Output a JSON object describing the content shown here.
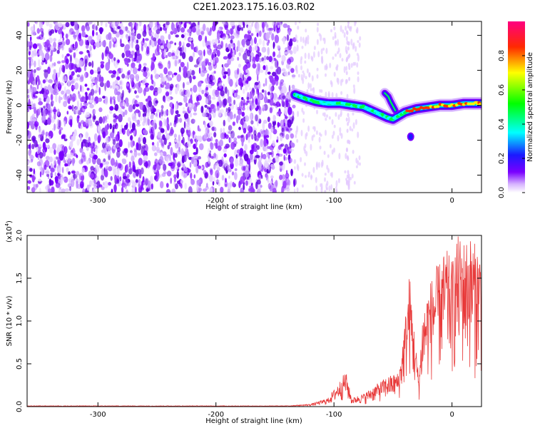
{
  "title": "C2E1.2023.175.16.03.R02",
  "spectrogram": {
    "type": "heatmap",
    "xlabel": "Height of straight line (km)",
    "ylabel": "Frequency (Hz)",
    "xlim": [
      -360,
      25
    ],
    "ylim": [
      -50,
      48
    ],
    "xticks": [
      -300,
      -200,
      -100,
      0
    ],
    "yticks": [
      -40,
      -20,
      0,
      20,
      40
    ],
    "colorbar": {
      "label": "Normalized spectral amplitude",
      "range": [
        0.0,
        1.0
      ],
      "ticks": [
        "0.0",
        "0.2",
        "0.4",
        "0.6",
        "0.8"
      ],
      "tick_values": [
        0.0,
        0.2,
        0.4,
        0.6,
        0.8
      ]
    },
    "noise_region": {
      "x_from": -360,
      "x_to": -133,
      "color": "#7a00ff"
    },
    "signal_track": [
      {
        "x": -133,
        "y": 6
      },
      {
        "x": -125,
        "y": 4
      },
      {
        "x": -115,
        "y": 2
      },
      {
        "x": -105,
        "y": 1
      },
      {
        "x": -95,
        "y": 1
      },
      {
        "x": -85,
        "y": 0
      },
      {
        "x": -75,
        "y": -1
      },
      {
        "x": -65,
        "y": -4
      },
      {
        "x": -55,
        "y": -7
      },
      {
        "x": -50,
        "y": -8
      },
      {
        "x": -45,
        "y": -6
      },
      {
        "x": -40,
        "y": -4
      },
      {
        "x": -30,
        "y": -2
      },
      {
        "x": -20,
        "y": -1
      },
      {
        "x": -10,
        "y": 0
      },
      {
        "x": 0,
        "y": 0
      },
      {
        "x": 10,
        "y": 1
      },
      {
        "x": 20,
        "y": 1
      },
      {
        "x": 25,
        "y": 1
      }
    ],
    "side_branch": [
      {
        "x": -57,
        "y": 7
      },
      {
        "x": -54,
        "y": 5
      },
      {
        "x": -52,
        "y": 2
      },
      {
        "x": -48,
        "y": -3
      }
    ],
    "isolated_blob": {
      "x": -35,
      "y": -18
    }
  },
  "snr": {
    "type": "line",
    "xlabel": "Height of straight line (km)",
    "ylabel": "SNR (10 * v/v)",
    "scale_label": "(x10",
    "scale_exp": "4",
    "scale_close": ")",
    "xlim": [
      -360,
      25
    ],
    "ylim": [
      0,
      2.0
    ],
    "xticks": [
      -300,
      -200,
      -100,
      0
    ],
    "yticks": [
      "0.0",
      "0.5",
      "1.0",
      "1.5",
      "2.0"
    ],
    "ytick_values": [
      0.0,
      0.5,
      1.0,
      1.5,
      2.0
    ],
    "color": "#e83a3a",
    "envelope": [
      {
        "x": -360,
        "y": 0.01
      },
      {
        "x": -140,
        "y": 0.01
      },
      {
        "x": -120,
        "y": 0.03
      },
      {
        "x": -105,
        "y": 0.1
      },
      {
        "x": -95,
        "y": 0.3
      },
      {
        "x": -90,
        "y": 0.42
      },
      {
        "x": -85,
        "y": 0.1
      },
      {
        "x": -75,
        "y": 0.15
      },
      {
        "x": -65,
        "y": 0.25
      },
      {
        "x": -55,
        "y": 0.35
      },
      {
        "x": -45,
        "y": 0.4
      },
      {
        "x": -40,
        "y": 1.0
      },
      {
        "x": -36,
        "y": 1.58
      },
      {
        "x": -32,
        "y": 0.9
      },
      {
        "x": -28,
        "y": 0.35
      },
      {
        "x": -25,
        "y": 1.1
      },
      {
        "x": -20,
        "y": 1.4
      },
      {
        "x": -15,
        "y": 1.6
      },
      {
        "x": -10,
        "y": 1.7
      },
      {
        "x": -5,
        "y": 1.85
      },
      {
        "x": 0,
        "y": 1.7
      },
      {
        "x": 5,
        "y": 2.0
      },
      {
        "x": 10,
        "y": 1.95
      },
      {
        "x": 15,
        "y": 2.0
      },
      {
        "x": 20,
        "y": 1.9
      },
      {
        "x": 25,
        "y": 1.85
      }
    ]
  }
}
